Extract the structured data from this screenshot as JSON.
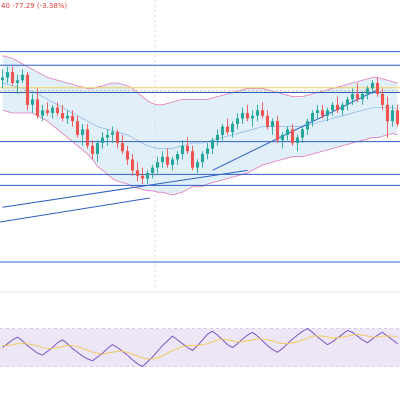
{
  "chart_data": [
    {
      "type": "candlestick",
      "header_text": "40  -77.29  (-3.38%)",
      "colors": {
        "up": "#26a69a",
        "down": "#ef5350",
        "bollinger_band": "#e06bb0",
        "bollinger_fill": "#c9e4f2",
        "horizontal_line": "#2f5fc4",
        "trend_line": "#2f5fc4",
        "highlight_line": "#f2d061",
        "dotted_line": "#c9b87c"
      },
      "ylim": [
        0,
        100
      ],
      "horizontal_levels": [
        85.5,
        80.5,
        70.5,
        52.5,
        40.5,
        36.5,
        0
      ],
      "dotted_levels": [
        71.5
      ],
      "trend_lines": [
        {
          "from": [
            0,
            28.5
          ],
          "to": [
            49,
            42
          ]
        },
        {
          "from": [
            42,
            42
          ],
          "to": [
            75,
            71.5
          ]
        },
        {
          "from": [
            86,
            49
          ],
          "to": [
            118,
            72.5
          ]
        },
        {
          "from": [
            86,
            49
          ],
          "to": [
            120,
            71
          ]
        }
      ],
      "candles": [
        {
          "o": 75,
          "h": 79,
          "l": 72,
          "c": 76
        },
        {
          "o": 76,
          "h": 80,
          "l": 74,
          "c": 78
        },
        {
          "o": 78,
          "h": 80,
          "l": 73,
          "c": 74
        },
        {
          "o": 74,
          "h": 77,
          "l": 70,
          "c": 75
        },
        {
          "o": 75,
          "h": 79,
          "l": 74,
          "c": 77
        },
        {
          "o": 77,
          "h": 78,
          "l": 64,
          "c": 66
        },
        {
          "o": 66,
          "h": 70,
          "l": 63,
          "c": 68
        },
        {
          "o": 68,
          "h": 72,
          "l": 61,
          "c": 62
        },
        {
          "o": 62,
          "h": 66,
          "l": 60,
          "c": 64
        },
        {
          "o": 64,
          "h": 67,
          "l": 62,
          "c": 63
        },
        {
          "o": 63,
          "h": 66,
          "l": 61,
          "c": 65
        },
        {
          "o": 65,
          "h": 67,
          "l": 62,
          "c": 63
        },
        {
          "o": 63,
          "h": 66,
          "l": 60,
          "c": 61
        },
        {
          "o": 61,
          "h": 64,
          "l": 59,
          "c": 62
        },
        {
          "o": 62,
          "h": 64,
          "l": 58,
          "c": 60
        },
        {
          "o": 60,
          "h": 62,
          "l": 54,
          "c": 55
        },
        {
          "o": 55,
          "h": 59,
          "l": 51,
          "c": 57
        },
        {
          "o": 57,
          "h": 59,
          "l": 50,
          "c": 51
        },
        {
          "o": 51,
          "h": 53,
          "l": 46,
          "c": 48
        },
        {
          "o": 48,
          "h": 53,
          "l": 45,
          "c": 52
        },
        {
          "o": 52,
          "h": 56,
          "l": 50,
          "c": 54
        },
        {
          "o": 54,
          "h": 57,
          "l": 51,
          "c": 55
        },
        {
          "o": 55,
          "h": 58,
          "l": 52,
          "c": 56
        },
        {
          "o": 56,
          "h": 57,
          "l": 50,
          "c": 52
        },
        {
          "o": 52,
          "h": 55,
          "l": 48,
          "c": 49
        },
        {
          "o": 49,
          "h": 51,
          "l": 44,
          "c": 46
        },
        {
          "o": 46,
          "h": 48,
          "l": 40,
          "c": 42
        },
        {
          "o": 42,
          "h": 45,
          "l": 38,
          "c": 40
        },
        {
          "o": 40,
          "h": 43,
          "l": 37,
          "c": 39
        },
        {
          "o": 39,
          "h": 42,
          "l": 37,
          "c": 41
        },
        {
          "o": 41,
          "h": 44,
          "l": 39,
          "c": 43
        },
        {
          "o": 43,
          "h": 47,
          "l": 41,
          "c": 45
        },
        {
          "o": 45,
          "h": 49,
          "l": 43,
          "c": 47
        },
        {
          "o": 47,
          "h": 50,
          "l": 43,
          "c": 44
        },
        {
          "o": 44,
          "h": 47,
          "l": 42,
          "c": 46
        },
        {
          "o": 46,
          "h": 49,
          "l": 44,
          "c": 48
        },
        {
          "o": 48,
          "h": 53,
          "l": 46,
          "c": 51
        },
        {
          "o": 51,
          "h": 54,
          "l": 48,
          "c": 49
        },
        {
          "o": 49,
          "h": 51,
          "l": 42,
          "c": 43
        },
        {
          "o": 43,
          "h": 46,
          "l": 41,
          "c": 45
        },
        {
          "o": 45,
          "h": 49,
          "l": 43,
          "c": 48
        },
        {
          "o": 48,
          "h": 52,
          "l": 46,
          "c": 50
        },
        {
          "o": 50,
          "h": 54,
          "l": 48,
          "c": 53
        },
        {
          "o": 53,
          "h": 57,
          "l": 51,
          "c": 55
        },
        {
          "o": 55,
          "h": 59,
          "l": 53,
          "c": 58
        },
        {
          "o": 58,
          "h": 61,
          "l": 55,
          "c": 56
        },
        {
          "o": 56,
          "h": 60,
          "l": 54,
          "c": 59
        },
        {
          "o": 59,
          "h": 63,
          "l": 57,
          "c": 61
        },
        {
          "o": 61,
          "h": 65,
          "l": 59,
          "c": 63
        },
        {
          "o": 63,
          "h": 66,
          "l": 60,
          "c": 61
        },
        {
          "o": 61,
          "h": 64,
          "l": 58,
          "c": 62
        },
        {
          "o": 62,
          "h": 66,
          "l": 60,
          "c": 64
        },
        {
          "o": 64,
          "h": 67,
          "l": 61,
          "c": 62
        },
        {
          "o": 62,
          "h": 64,
          "l": 57,
          "c": 58
        },
        {
          "o": 58,
          "h": 61,
          "l": 55,
          "c": 60
        },
        {
          "o": 60,
          "h": 62,
          "l": 52,
          "c": 53
        },
        {
          "o": 53,
          "h": 56,
          "l": 50,
          "c": 55
        },
        {
          "o": 55,
          "h": 58,
          "l": 53,
          "c": 57
        },
        {
          "o": 57,
          "h": 59,
          "l": 51,
          "c": 52
        },
        {
          "o": 52,
          "h": 55,
          "l": 49,
          "c": 54
        },
        {
          "o": 54,
          "h": 58,
          "l": 52,
          "c": 57
        },
        {
          "o": 57,
          "h": 61,
          "l": 55,
          "c": 60
        },
        {
          "o": 60,
          "h": 64,
          "l": 58,
          "c": 63
        },
        {
          "o": 63,
          "h": 66,
          "l": 61,
          "c": 64
        },
        {
          "o": 64,
          "h": 66,
          "l": 61,
          "c": 62
        },
        {
          "o": 62,
          "h": 65,
          "l": 60,
          "c": 64
        },
        {
          "o": 64,
          "h": 67,
          "l": 62,
          "c": 66
        },
        {
          "o": 66,
          "h": 69,
          "l": 63,
          "c": 64
        },
        {
          "o": 64,
          "h": 67,
          "l": 62,
          "c": 66
        },
        {
          "o": 66,
          "h": 69,
          "l": 64,
          "c": 68
        },
        {
          "o": 68,
          "h": 72,
          "l": 66,
          "c": 70
        },
        {
          "o": 70,
          "h": 74,
          "l": 67,
          "c": 68
        },
        {
          "o": 68,
          "h": 71,
          "l": 66,
          "c": 70
        },
        {
          "o": 70,
          "h": 73,
          "l": 68,
          "c": 72
        },
        {
          "o": 72,
          "h": 75,
          "l": 70,
          "c": 74
        },
        {
          "o": 74,
          "h": 76,
          "l": 69,
          "c": 70
        },
        {
          "o": 70,
          "h": 72,
          "l": 64,
          "c": 66
        },
        {
          "o": 66,
          "h": 69,
          "l": 54,
          "c": 60
        },
        {
          "o": 60,
          "h": 66,
          "l": 58,
          "c": 64
        },
        {
          "o": 64,
          "h": 66,
          "l": 58,
          "c": 59
        }
      ],
      "bollinger": {
        "upper": [
          84,
          83.5,
          83,
          82,
          81,
          80,
          79,
          78,
          77,
          76,
          75.5,
          75,
          74.5,
          74,
          73.5,
          73,
          72.5,
          72,
          72,
          72.5,
          73,
          73.5,
          74,
          74,
          73.5,
          73,
          72,
          70.5,
          69,
          67.5,
          66.5,
          66,
          66,
          66.5,
          67,
          67.5,
          68,
          68,
          68,
          68,
          68,
          68,
          68.5,
          69,
          69.5,
          70,
          70.5,
          71,
          71.5,
          72,
          72,
          72,
          72,
          71.5,
          71,
          70.5,
          70,
          69.5,
          69,
          69,
          69,
          69.5,
          70,
          70.5,
          71,
          71.5,
          72,
          72.5,
          73,
          73.5,
          74,
          74.5,
          75,
          75.5,
          76,
          76,
          75.5,
          75,
          74.5,
          74
        ],
        "middle": [
          74,
          73.5,
          73,
          72.5,
          72,
          71.5,
          71,
          70,
          69,
          68,
          67,
          66,
          65,
          64,
          63,
          62,
          61,
          60,
          59,
          58,
          57.5,
          57,
          56.5,
          56,
          55.5,
          55,
          54,
          53,
          52,
          51,
          50.5,
          50,
          50,
          50,
          50,
          50.5,
          51,
          51.5,
          52,
          52,
          52,
          52.5,
          53,
          53.5,
          54,
          54.5,
          55,
          55.5,
          56,
          56.5,
          57,
          57.5,
          58,
          58,
          58,
          58,
          58,
          58,
          58,
          58,
          58,
          58.5,
          59,
          59.5,
          60,
          60.5,
          61,
          61.5,
          62,
          62.5,
          63,
          63.5,
          64,
          64.5,
          65,
          65,
          65,
          65,
          65,
          64.5
        ],
        "lower": [
          64,
          63.5,
          63,
          63,
          63,
          63,
          63,
          62,
          61,
          60,
          58.5,
          57,
          55.5,
          54,
          52.5,
          51,
          49.5,
          48,
          46,
          43.5,
          42,
          40.5,
          39,
          38,
          37.5,
          37,
          36,
          35.5,
          35,
          34.5,
          34.5,
          34,
          34,
          33.5,
          33,
          33.5,
          34,
          35,
          36,
          36,
          36,
          37,
          37.5,
          38,
          38.5,
          39,
          39.5,
          40,
          40.5,
          41,
          42,
          43,
          44,
          44.5,
          45,
          45.5,
          46,
          46.5,
          47,
          47,
          47,
          47.5,
          48,
          48.5,
          49,
          49.5,
          50,
          50.5,
          51,
          51.5,
          52,
          52.5,
          53,
          53.5,
          54,
          54,
          54.5,
          55,
          55.5,
          55
        ]
      }
    },
    {
      "type": "line",
      "ylim": [
        0,
        100
      ],
      "colors": {
        "main": "#7e57c2",
        "signal": "#f2c94c",
        "band_fill": "#ece6f7"
      },
      "band": [
        30,
        70
      ],
      "series": [
        {
          "values": [
            50,
            54,
            58,
            61,
            57,
            52,
            48,
            44,
            42,
            46,
            50,
            55,
            58,
            54,
            49,
            45,
            41,
            38,
            36,
            40,
            44,
            49,
            53,
            50,
            46,
            42,
            37,
            33,
            30,
            35,
            40,
            46,
            52,
            57,
            62,
            58,
            54,
            50,
            47,
            52,
            58,
            64,
            67,
            63,
            58,
            53,
            50,
            54,
            59,
            63,
            66,
            62,
            57,
            52,
            48,
            45,
            49,
            54,
            59,
            63,
            67,
            70,
            66,
            61,
            57,
            53,
            56,
            60,
            64,
            68,
            66,
            62,
            58,
            55,
            59,
            63,
            66,
            62,
            58,
            54
          ]
        },
        {
          "values": [
            52,
            52,
            53,
            54,
            54,
            54,
            53,
            52,
            50,
            49,
            49,
            50,
            51,
            52,
            52,
            51,
            49,
            47,
            45,
            44,
            43,
            44,
            45,
            46,
            46,
            45,
            43,
            41,
            39,
            38,
            38,
            39,
            41,
            44,
            47,
            49,
            51,
            52,
            52,
            52,
            53,
            54,
            56,
            58,
            59,
            58,
            57,
            56,
            56,
            57,
            58,
            59,
            59,
            58,
            57,
            55,
            54,
            54,
            55,
            56,
            58,
            60,
            62,
            62,
            62,
            61,
            60,
            60,
            61,
            62,
            63,
            64,
            63,
            62,
            61,
            61,
            62,
            62,
            62,
            61
          ]
        }
      ]
    }
  ]
}
